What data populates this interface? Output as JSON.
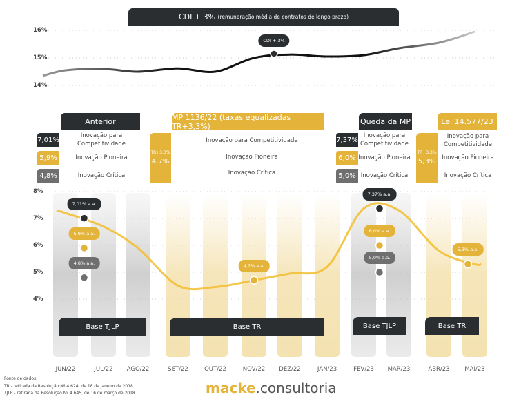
{
  "chart_data": [
    {
      "type": "line",
      "title": "CDI + 3%",
      "subtitle": "(remuneração média de contratos de longo prazo)",
      "yticks": [
        "16%",
        "15%",
        "14%"
      ],
      "ylim": [
        14,
        16
      ],
      "grid": true,
      "x": [
        "JUN/22",
        "JUL/22",
        "AGO/22",
        "SET/22",
        "OUT/22",
        "NOV/22",
        "DEZ/22",
        "JAN/23",
        "FEV/23",
        "MAR/23",
        "ABR/23",
        "MAI/23"
      ],
      "values": [
        14.55,
        14.6,
        14.5,
        14.62,
        14.5,
        15.0,
        15.12,
        15.05,
        15.1,
        15.35,
        15.55,
        15.95
      ],
      "annotation": "CDI + 3%",
      "color": "#111111"
    },
    {
      "type": "line",
      "yticks": [
        "8%",
        "7%",
        "6%",
        "5%",
        "4%"
      ],
      "ylim": [
        3,
        8
      ],
      "grid": true,
      "x": [
        "JUN/22",
        "JUL/22",
        "AGO/22",
        "SET/22",
        "OUT/22",
        "NOV/22",
        "DEZ/22",
        "JAN/23",
        "FEV/23",
        "MAR/23",
        "ABR/23",
        "MAI/23"
      ],
      "values": [
        7.2,
        6.7,
        5.9,
        4.5,
        4.45,
        4.7,
        4.95,
        5.2,
        7.37,
        7.3,
        5.8,
        5.3
      ],
      "color": "#f2bd2c",
      "bar_colors": [
        "gray",
        "gray",
        "gray",
        "yellow",
        "yellow",
        "yellow",
        "yellow",
        "yellow",
        "gray",
        "gray",
        "yellow",
        "yellow"
      ],
      "points": [
        {
          "x": "JUL/22",
          "y": 7.01,
          "label": "7,01% a.a.",
          "color": "#2b2e31"
        },
        {
          "x": "JUL/22",
          "y": 5.9,
          "label": "5,9% a.a.",
          "color": "#e3b33a"
        },
        {
          "x": "JUL/22",
          "y": 4.8,
          "label": "4,8% a.a.",
          "color": "#6f6f6f"
        },
        {
          "x": "NOV/22",
          "y": 4.7,
          "label": "4,7% a.a.",
          "color": "#e3b33a"
        },
        {
          "x": "FEV/23",
          "y": 7.37,
          "label": "7,37% a.a.",
          "color": "#2b2e31"
        },
        {
          "x": "FEV/23",
          "y": 6.0,
          "label": "6,0% a.a.",
          "color": "#e3b33a"
        },
        {
          "x": "FEV/23",
          "y": 5.0,
          "label": "5,0% a.a.",
          "color": "#6f6f6f"
        },
        {
          "x": "MAI/23",
          "y": 5.3,
          "label": "5,3% a.a.",
          "color": "#e3b33a"
        }
      ],
      "bases": [
        "Base TJLP",
        "Base TR",
        "Base TJLP",
        "Base TR"
      ]
    }
  ],
  "periods": [
    {
      "title": "Anterior",
      "rates": [
        "7,01%",
        "5,9%",
        "4,8%"
      ]
    },
    {
      "title": "MP 1136/22 (taxas equalizadas TR+3,3%)",
      "tag": "TR+3,3%",
      "rate": "4,7%"
    },
    {
      "title": "Queda da MP",
      "rates": [
        "7,37%",
        "6,0%",
        "5,0%"
      ]
    },
    {
      "title": "Lei 14.577/23",
      "tag": "TR+3,3%",
      "rate": "5,3%"
    }
  ],
  "categories": {
    "c1": "Inovação para Competitividade",
    "c1a": "Inovação para",
    "c1b": "Competitividade",
    "c2": "Inovação Pioneira",
    "c3": "Inovação Crítica"
  },
  "footer": {
    "title": "Fonte de dados:",
    "tr": "TR - retirada da Resolução Nº 4.624, de 18 de janeiro de 2018",
    "tjlp": "TJLP - retirada da Resolução Nº 4.645, de 16 de março de 2018"
  },
  "logo": {
    "a": "macke",
    "b": ".consultoria"
  }
}
